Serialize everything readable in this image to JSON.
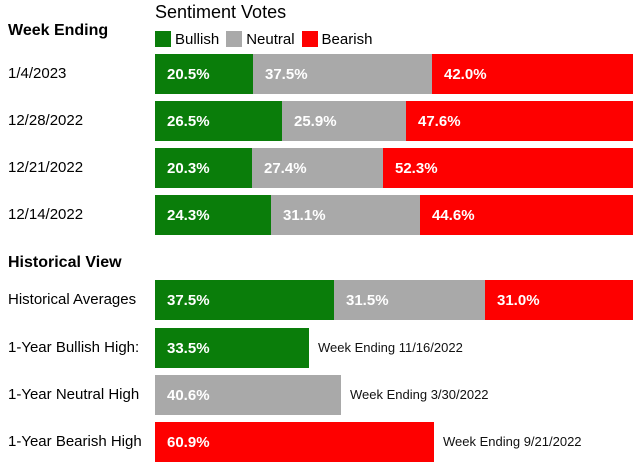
{
  "chart_data": {
    "type": "bar",
    "title": "Sentiment Votes",
    "legend": [
      "Bullish",
      "Neutral",
      "Bearish"
    ],
    "colors": {
      "bullish": "#0a7d0a",
      "neutral": "#a9a9a9",
      "bearish": "#fe0000"
    },
    "weekly": {
      "heading": "Week Ending",
      "rows": [
        {
          "label": "1/4/2023",
          "values": [
            20.5,
            37.5,
            42.0
          ],
          "texts": [
            "20.5%",
            "37.5%",
            "42.0%"
          ]
        },
        {
          "label": "12/28/2022",
          "values": [
            26.5,
            25.9,
            47.6
          ],
          "texts": [
            "26.5%",
            "25.9%",
            "47.6%"
          ]
        },
        {
          "label": "12/21/2022",
          "values": [
            20.3,
            27.4,
            52.3
          ],
          "texts": [
            "20.3%",
            "27.4%",
            "52.3%"
          ]
        },
        {
          "label": "12/14/2022",
          "values": [
            24.3,
            31.1,
            44.6
          ],
          "texts": [
            "24.3%",
            "31.1%",
            "44.6%"
          ]
        }
      ]
    },
    "historical": {
      "heading": "Historical View",
      "averages": {
        "label": "Historical Averages",
        "values": [
          37.5,
          31.5,
          31.0
        ],
        "texts": [
          "37.5%",
          "31.5%",
          "31.0%"
        ]
      },
      "highs": [
        {
          "label": "1-Year Bullish High:",
          "series": "bullish",
          "value": 33.5,
          "text": "33.5%",
          "note": "Week Ending 11/16/2022"
        },
        {
          "label": "1-Year Neutral High",
          "series": "neutral",
          "value": 40.6,
          "text": "40.6%",
          "note": "Week Ending 3/30/2022"
        },
        {
          "label": "1-Year Bearish High",
          "series": "bearish",
          "value": 60.9,
          "text": "60.9%",
          "note": "Week Ending 9/21/2022"
        }
      ]
    }
  }
}
